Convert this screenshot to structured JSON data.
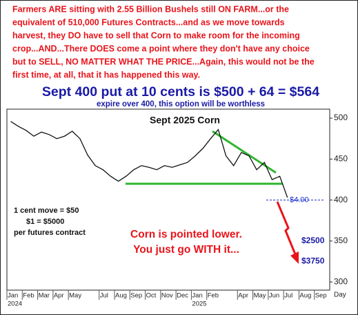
{
  "note_lines": [
    "Farmers ARE sitting with 2.55 Billion Bushels still ON FARM...or the",
    "equivalent of 510,000 Futures Contracts...and as we move towards",
    "harvest, they DO have to sell that Corn to make room for the incoming",
    "crop...AND...There DOES come a point where they don't have any choice",
    "but to SELL, NO MATTER WHAT THE PRICE...Again, this would not be the",
    "first time, at all, that it has happened this way."
  ],
  "headline": "Sept 400 put at 10 cents is $500 + 64 = $564",
  "subheadline": "expire over 400, this option will be worthless",
  "chart_data": {
    "type": "line",
    "title": "Sept 2025 Corn",
    "categories": [
      "Jan",
      null,
      "Feb",
      null,
      "Mar",
      null,
      "Apr",
      null,
      "May",
      null,
      null,
      null,
      "Jul",
      null,
      "Aug",
      null,
      "Sep",
      null,
      "Oct",
      null,
      "Nov",
      null,
      "Dec",
      null,
      "Jan",
      null,
      "Feb",
      null,
      null,
      null,
      "Apr",
      null,
      "May",
      null,
      "Jun",
      null,
      "Jul",
      null,
      "Aug",
      null,
      "Sep",
      null
    ],
    "years": [
      "2024",
      "2025"
    ],
    "x_axis_label": "Day",
    "series": [
      {
        "name": "Sept 2025 Corn",
        "color": "#111111",
        "values": [
          496,
          490,
          485,
          478,
          483,
          480,
          475,
          478,
          484,
          475,
          455,
          442,
          437,
          429,
          423,
          429,
          437,
          442,
          440,
          437,
          442,
          440,
          443,
          446,
          454,
          463,
          475,
          486,
          454,
          442,
          458,
          454,
          437,
          446,
          425,
          429,
          403,
          null,
          null,
          null,
          null,
          null
        ]
      }
    ],
    "ylim": [
      290,
      511
    ],
    "yticks": [
      300,
      350,
      400,
      450,
      500
    ],
    "price_marker": {
      "value": 400,
      "label": "$4.00",
      "color": "#1a2fd0"
    },
    "annotations": {
      "contract_lines": [
        "1 cent move = $50",
        "$1 = $5000",
        "per futures contract"
      ],
      "call_lines": [
        "Corn is pointed lower.",
        "You just go WITH it..."
      ],
      "targets": [
        {
          "value": 350,
          "label": "$2500"
        },
        {
          "value": 325,
          "label": "$3750"
        }
      ]
    }
  }
}
